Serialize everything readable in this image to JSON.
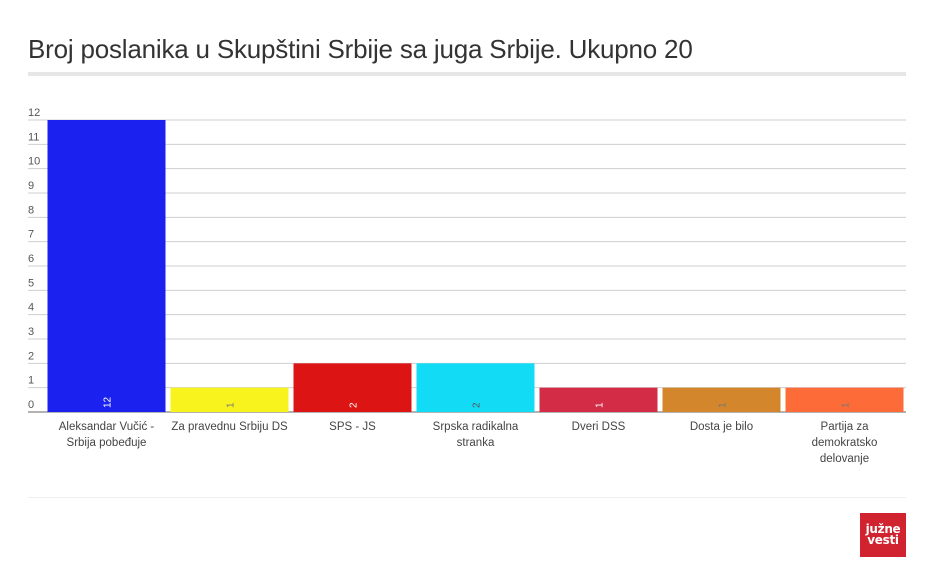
{
  "header": {
    "title": "Broj poslanika u Skupštini Srbije sa juga Srbije. Ukupno 20"
  },
  "logo": {
    "line1": "južne",
    "line2": "vesti",
    "color": "#d0222f"
  },
  "chart_data": {
    "type": "bar",
    "title": "Broj poslanika u Skupštini Srbije sa juga Srbije. Ukupno 20",
    "xlabel": "",
    "ylabel": "",
    "ylim": [
      0,
      12
    ],
    "yticks": [
      0,
      1,
      2,
      3,
      4,
      5,
      6,
      7,
      8,
      9,
      10,
      11,
      12
    ],
    "grid": true,
    "legend": "none",
    "categories": [
      [
        "Aleksandar Vučić -",
        "Srbija pobeđuje"
      ],
      [
        "Za pravednu Srbiju DS"
      ],
      [
        "SPS - JS"
      ],
      [
        "Srpska radikalna",
        "stranka"
      ],
      [
        "Dveri DSS"
      ],
      [
        "Dosta je bilo"
      ],
      [
        "Partija za",
        "demokratsko",
        "delovanje"
      ]
    ],
    "values": [
      12,
      1,
      2,
      2,
      1,
      1,
      1
    ],
    "colors": [
      "#1b22f0",
      "#f8f31c",
      "#dd1414",
      "#12dcf5",
      "#d22c46",
      "#d3862b",
      "#fc6b38"
    ],
    "data_label_colors": [
      "#ffffff",
      "#777777",
      "#ffffff",
      "#555555",
      "#ffffff",
      "#777777",
      "#777777"
    ]
  }
}
